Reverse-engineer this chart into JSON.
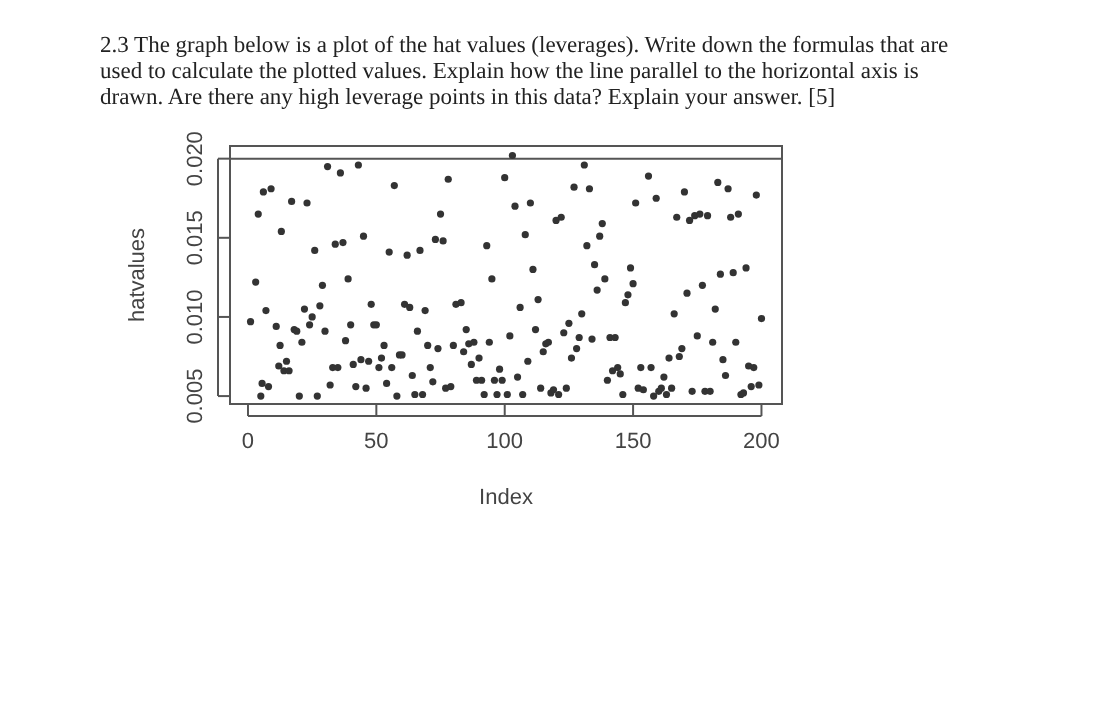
{
  "chart_data": {
    "type": "scatter",
    "title": "2.3 The graph below is a plot of the hat values (leverages). Write down the formulas that are used to calculate the plotted values. Explain how the line parallel to the horizontal axis is drawn. Are there any high leverage points in this data? Explain your answer.     [5]",
    "xlabel": "Index",
    "ylabel": "hatvalues",
    "series": [
      {
        "color": "#333333",
        "x": [
          1,
          3,
          4,
          5,
          5.5,
          6,
          7,
          8,
          9,
          11,
          12,
          12.5,
          13,
          14,
          15,
          16,
          17,
          18,
          19,
          20,
          21,
          22,
          23,
          24,
          25,
          26,
          27,
          28,
          29,
          30,
          31,
          32,
          33,
          34,
          35,
          36,
          37,
          38,
          39,
          40,
          41,
          42,
          43,
          44,
          45,
          46,
          47,
          48,
          49,
          50,
          51,
          52,
          53,
          54,
          55,
          56,
          57,
          58,
          59,
          60,
          61,
          62,
          63,
          64,
          65,
          66,
          67,
          68,
          69,
          70,
          71,
          72,
          73,
          74,
          75,
          76,
          77,
          78,
          79,
          80,
          81,
          83,
          84,
          85,
          86,
          87,
          88,
          89,
          90,
          91,
          92,
          93,
          94,
          95,
          96,
          97,
          98,
          99,
          100,
          101,
          102,
          103,
          104,
          105,
          106,
          107,
          108,
          109,
          110,
          111,
          112,
          113,
          114,
          115,
          116,
          117,
          118,
          119,
          120,
          121,
          122,
          123,
          124,
          125,
          126,
          127,
          128,
          129,
          130,
          131,
          132,
          133,
          134,
          135,
          136,
          137,
          138,
          139,
          140,
          141,
          142,
          143,
          144,
          145,
          146,
          147,
          148,
          149,
          150,
          151,
          152,
          153,
          154,
          156,
          157,
          158,
          159,
          160,
          161,
          162,
          163,
          164,
          165,
          166,
          167,
          168,
          169,
          170,
          171,
          172,
          173,
          174,
          175,
          176,
          177,
          178,
          179,
          180,
          181,
          182,
          183,
          184,
          185,
          186,
          187,
          188,
          189,
          190,
          191,
          192,
          193,
          194,
          195,
          196,
          197,
          198,
          199,
          200
        ],
        "values": [
          0.0097,
          0.0122,
          0.0165,
          0.005,
          0.0058,
          0.0179,
          0.0104,
          0.0056,
          0.0181,
          0.0094,
          0.0069,
          0.0082,
          0.0154,
          0.0066,
          0.0072,
          0.0066,
          0.0173,
          0.0092,
          0.0091,
          0.005,
          0.0084,
          0.0105,
          0.0172,
          0.0095,
          0.01,
          0.0142,
          0.005,
          0.0107,
          0.012,
          0.0091,
          0.0195,
          0.0057,
          0.0068,
          0.0146,
          0.0068,
          0.0191,
          0.0147,
          0.0085,
          0.0124,
          0.0095,
          0.007,
          0.0056,
          0.0196,
          0.0073,
          0.0151,
          0.0055,
          0.0072,
          0.0108,
          0.0095,
          0.0095,
          0.0068,
          0.0074,
          0.0082,
          0.0058,
          0.0141,
          0.0068,
          0.0183,
          0.005,
          0.0076,
          0.0076,
          0.0108,
          0.0139,
          0.0106,
          0.0063,
          0.0051,
          0.0091,
          0.0142,
          0.0051,
          0.0104,
          0.0082,
          0.0068,
          0.0059,
          0.0149,
          0.008,
          0.0165,
          0.0148,
          0.0055,
          0.0187,
          0.0056,
          0.0082,
          0.0108,
          0.0109,
          0.0078,
          0.0092,
          0.0083,
          0.007,
          0.0084,
          0.006,
          0.0074,
          0.006,
          0.0051,
          0.0145,
          0.0084,
          0.0124,
          0.006,
          0.0051,
          0.0067,
          0.006,
          0.0188,
          0.0051,
          0.0088,
          0.0202,
          0.017,
          0.0062,
          0.0106,
          0.0051,
          0.0152,
          0.0072,
          0.0172,
          0.013,
          0.0092,
          0.0111,
          0.0055,
          0.0078,
          0.0083,
          0.0084,
          0.0052,
          0.0054,
          0.0161,
          0.0051,
          0.0163,
          0.009,
          0.0055,
          0.0096,
          0.0074,
          0.0182,
          0.008,
          0.0087,
          0.0102,
          0.0196,
          0.0145,
          0.0181,
          0.0086,
          0.0133,
          0.0117,
          0.0151,
          0.0159,
          0.0124,
          0.006,
          0.0087,
          0.0066,
          0.0087,
          0.0068,
          0.0064,
          0.0051,
          0.0109,
          0.0114,
          0.0131,
          0.0121,
          0.0172,
          0.0055,
          0.0068,
          0.0054,
          0.0189,
          0.0068,
          0.005,
          0.0175,
          0.0053,
          0.0055,
          0.0062,
          0.0051,
          0.0074,
          0.0055,
          0.0102,
          0.0163,
          0.0075,
          0.008,
          0.0179,
          0.0115,
          0.0161,
          0.0053,
          0.0164,
          0.0088,
          0.0165,
          0.012,
          0.0053,
          0.0164,
          0.0053,
          0.0084,
          0.0105,
          0.0185,
          0.0127,
          0.0073,
          0.0063,
          0.0181,
          0.0163,
          0.0128,
          0.0084,
          0.0165,
          0.0051,
          0.0052,
          0.0131,
          0.0069,
          0.0056,
          0.0068,
          0.0177,
          0.0057,
          0.0099
        ]
      }
    ],
    "xlim": [
      -7,
      208
    ],
    "xticks": [
      0,
      50,
      100,
      150,
      200
    ],
    "ylim": [
      0.0045,
      0.0208
    ],
    "yticks": [
      {
        "value": 0.005,
        "label": "0.005"
      },
      {
        "value": 0.01,
        "label": "0.010"
      },
      {
        "value": 0.015,
        "label": "0.015"
      },
      {
        "value": 0.02,
        "label": "0.020"
      }
    ],
    "ref_lines": [
      {
        "axis": "y",
        "value": 0.02,
        "color": "#555555"
      }
    ],
    "marker": "circle",
    "grid": false
  }
}
